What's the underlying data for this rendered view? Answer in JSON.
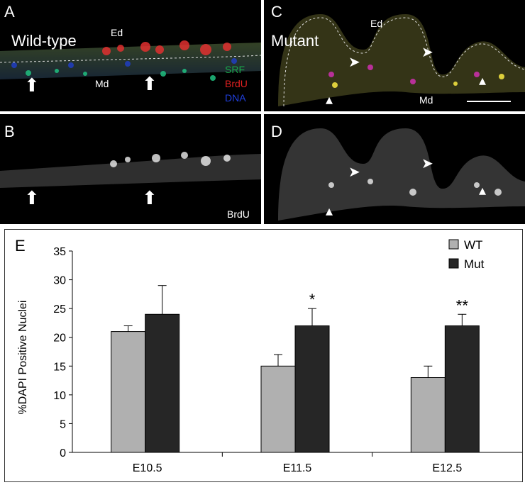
{
  "panels": {
    "A": {
      "letter": "A",
      "title": "Wild-type",
      "ed": "Ed",
      "md": "Md",
      "legend": [
        {
          "text": "SRF",
          "color": "#1aa84a"
        },
        {
          "text": "BrdU",
          "color": "#e02020"
        },
        {
          "text": "DNA",
          "color": "#2040e0"
        }
      ]
    },
    "B": {
      "letter": "B",
      "stain": "BrdU"
    },
    "C": {
      "letter": "C",
      "title": "Mutant",
      "ed": "Ed",
      "md": "Md"
    },
    "D": {
      "letter": "D"
    }
  },
  "icons": [
    "arrow-up-icon",
    "arrowhead-icon"
  ],
  "chart_data": {
    "type": "bar",
    "panel_letter": "E",
    "categories": [
      "E10.5",
      "E11.5",
      "E12.5"
    ],
    "series": [
      {
        "name": "WT",
        "values": [
          21,
          15,
          13
        ],
        "errors": [
          1,
          2,
          2
        ],
        "color": "#b0b0b0"
      },
      {
        "name": "Mut",
        "values": [
          24,
          22,
          22
        ],
        "errors": [
          5,
          3,
          2
        ],
        "color": "#262626"
      }
    ],
    "significance": [
      "",
      "*",
      "**"
    ],
    "ylabel": "%DAPI Positive Nuclei",
    "xlabel": "",
    "ylim": [
      0,
      35
    ],
    "yticks": [
      0,
      5,
      10,
      15,
      20,
      25,
      30,
      35
    ],
    "grid": false,
    "legend_position": "top-right"
  }
}
